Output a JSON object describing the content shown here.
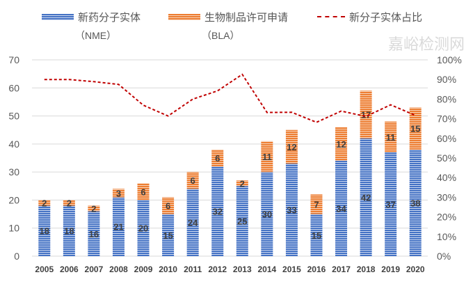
{
  "chart_data": {
    "type": "bar",
    "stacked": true,
    "categories": [
      "2005",
      "2006",
      "2007",
      "2008",
      "2009",
      "2010",
      "2011",
      "2012",
      "2013",
      "2014",
      "2015",
      "2016",
      "2017",
      "2018",
      "2019",
      "2020"
    ],
    "series": [
      {
        "name": "新药分子实体",
        "name_sub": "（NME）",
        "color": "#4472C4",
        "values": [
          18,
          18,
          16,
          21,
          20,
          15,
          24,
          32,
          25,
          30,
          33,
          15,
          34,
          42,
          37,
          38
        ]
      },
      {
        "name": "生物制品许可申请",
        "name_sub": "（BLA）",
        "color": "#ED7D31",
        "values": [
          2,
          2,
          2,
          3,
          6,
          6,
          6,
          6,
          2,
          11,
          12,
          7,
          12,
          17,
          11,
          15
        ]
      }
    ],
    "line_series": {
      "name": "新分子实体占比",
      "color": "#C00000",
      "axis": "right",
      "values": [
        90,
        90,
        88.9,
        87.5,
        76.9,
        71.4,
        80,
        84.2,
        92.6,
        73.2,
        73.3,
        68.2,
        73.9,
        71.2,
        77.1,
        71.7
      ]
    },
    "ylim": [
      0,
      70
    ],
    "yticks": [
      "0",
      "10",
      "20",
      "30",
      "40",
      "50",
      "60",
      "70"
    ],
    "y2lim": [
      0,
      100
    ],
    "y2ticks": [
      "0%",
      "10%",
      "20%",
      "30%",
      "40%",
      "50%",
      "60%",
      "70%",
      "80%",
      "90%",
      "100%"
    ],
    "grid": true,
    "legend": "top"
  },
  "watermark": "嘉峪检测网"
}
